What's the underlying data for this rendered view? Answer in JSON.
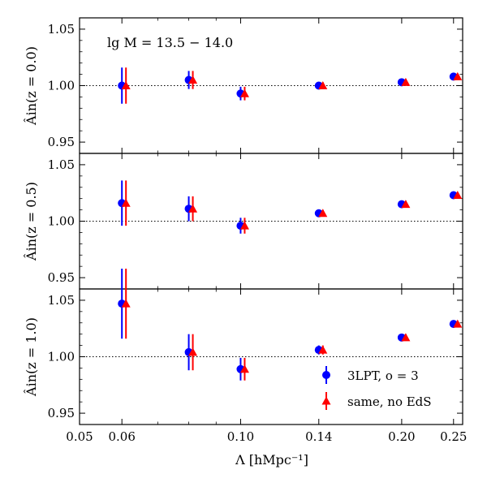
{
  "chart_data": {
    "type": "scatter",
    "annotation": "lg M = 13.5 − 14.0",
    "xlabel": "Λ [hMpc⁻¹]",
    "x_scale": "log",
    "xlim": [
      0.05,
      0.26
    ],
    "x_ticks": [
      0.05,
      0.06,
      0.1,
      0.14,
      0.2,
      0.25
    ],
    "x_tick_labels": [
      "0.05",
      "0.06",
      "0.10",
      "0.14",
      "0.20",
      "0.25"
    ],
    "ylim": [
      0.94,
      1.06
    ],
    "y_ticks": [
      0.95,
      1.0,
      1.05
    ],
    "y_tick_labels": [
      "0.95",
      "1.00",
      "1.05"
    ],
    "reference_line": {
      "y": 1.0,
      "style": "dotted"
    },
    "legend": {
      "placement": "lower-right (bottom panel)",
      "entries": [
        "3LPT, o = 3",
        "same, no EdS"
      ]
    },
    "series_colors": {
      "3LPT, o = 3": "#0000ff",
      "same, no EdS": "#ff0000"
    },
    "x": [
      0.06,
      0.08,
      0.1,
      0.14,
      0.2,
      0.25
    ],
    "panels": [
      {
        "ylabel": "Âin(z = 0.0)",
        "series": [
          {
            "name": "3LPT, o = 3",
            "marker": "circle",
            "values": [
              1.0,
              1.005,
              0.993,
              1.0,
              1.003,
              1.008
            ],
            "errors": [
              0.016,
              0.008,
              0.006,
              0.003,
              0.003,
              0.002
            ]
          },
          {
            "name": "same, no EdS",
            "marker": "triangle",
            "values": [
              1.0,
              1.005,
              0.993,
              1.0,
              1.003,
              1.008
            ],
            "errors": [
              0.016,
              0.008,
              0.006,
              0.003,
              0.003,
              0.002
            ]
          }
        ]
      },
      {
        "ylabel": "Âin(z = 0.5)",
        "series": [
          {
            "name": "3LPT, o = 3",
            "marker": "circle",
            "values": [
              1.016,
              1.011,
              0.996,
              1.007,
              1.015,
              1.023
            ],
            "errors": [
              0.02,
              0.011,
              0.007,
              0.003,
              0.003,
              0.002
            ]
          },
          {
            "name": "same, no EdS",
            "marker": "triangle",
            "values": [
              1.016,
              1.011,
              0.996,
              1.007,
              1.015,
              1.023
            ],
            "errors": [
              0.02,
              0.011,
              0.007,
              0.003,
              0.003,
              0.002
            ]
          }
        ]
      },
      {
        "ylabel": "Âin(z = 1.0)",
        "series": [
          {
            "name": "3LPT, o = 3",
            "marker": "circle",
            "values": [
              1.047,
              1.004,
              0.989,
              1.006,
              1.017,
              1.029
            ],
            "errors": [
              0.031,
              0.016,
              0.01,
              0.004,
              0.003,
              0.002
            ]
          },
          {
            "name": "same, no EdS",
            "marker": "triangle",
            "values": [
              1.047,
              1.004,
              0.989,
              1.006,
              1.017,
              1.029
            ],
            "errors": [
              0.031,
              0.016,
              0.01,
              0.004,
              0.003,
              0.002
            ]
          }
        ]
      }
    ]
  }
}
